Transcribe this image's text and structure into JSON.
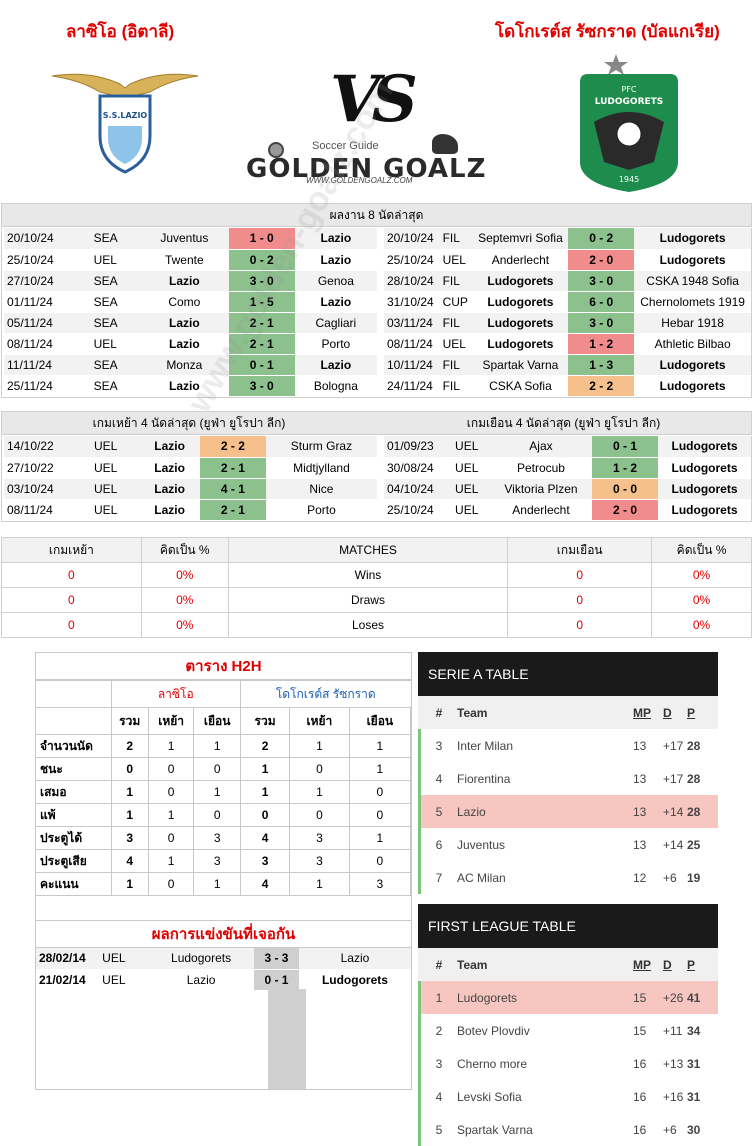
{
  "header": {
    "home_team_name": "ลาซิโอ (อิตาลี)",
    "away_team_name": "โดโกเรต์ส รัซกราด (บัลแกเรีย)",
    "vs_text": "VS",
    "brand_subtitle": "Soccer Guide",
    "brand_name": "GOLDEN GOALZ",
    "brand_url": "WWW.GOLDENGOALZ.COM",
    "home_logo_text": "S.S.LAZIO",
    "away_logo_top": "PFC",
    "away_logo_name": "LUDOGORETS",
    "away_logo_year": "1945"
  },
  "last8": {
    "title": "ผลงาน 8 นัดล่าสุด",
    "home": [
      {
        "date": "20/10/24",
        "comp": "SEA",
        "home": "Juventus",
        "score": "1 - 0",
        "away": "Lazio",
        "res": "loss",
        "bold": "away"
      },
      {
        "date": "25/10/24",
        "comp": "UEL",
        "home": "Twente",
        "score": "0 - 2",
        "away": "Lazio",
        "res": "win",
        "bold": "away"
      },
      {
        "date": "27/10/24",
        "comp": "SEA",
        "home": "Lazio",
        "score": "3 - 0",
        "away": "Genoa",
        "res": "win",
        "bold": "home"
      },
      {
        "date": "01/11/24",
        "comp": "SEA",
        "home": "Como",
        "score": "1 - 5",
        "away": "Lazio",
        "res": "win",
        "bold": "away"
      },
      {
        "date": "05/11/24",
        "comp": "SEA",
        "home": "Lazio",
        "score": "2 - 1",
        "away": "Cagliari",
        "res": "win",
        "bold": "home"
      },
      {
        "date": "08/11/24",
        "comp": "UEL",
        "home": "Lazio",
        "score": "2 - 1",
        "away": "Porto",
        "res": "win",
        "bold": "home"
      },
      {
        "date": "11/11/24",
        "comp": "SEA",
        "home": "Monza",
        "score": "0 - 1",
        "away": "Lazio",
        "res": "win",
        "bold": "away"
      },
      {
        "date": "25/11/24",
        "comp": "SEA",
        "home": "Lazio",
        "score": "3 - 0",
        "away": "Bologna",
        "res": "win",
        "bold": "home"
      }
    ],
    "away": [
      {
        "date": "20/10/24",
        "comp": "FIL",
        "home": "Septemvri Sofia",
        "score": "0 - 2",
        "away": "Ludogorets",
        "res": "win",
        "bold": "away"
      },
      {
        "date": "25/10/24",
        "comp": "UEL",
        "home": "Anderlecht",
        "score": "2 - 0",
        "away": "Ludogorets",
        "res": "loss",
        "bold": "away"
      },
      {
        "date": "28/10/24",
        "comp": "FIL",
        "home": "Ludogorets",
        "score": "3 - 0",
        "away": "CSKA 1948 Sofia",
        "res": "win",
        "bold": "home"
      },
      {
        "date": "31/10/24",
        "comp": "CUP",
        "home": "Ludogorets",
        "score": "6 - 0",
        "away": "Chernolomets 1919",
        "res": "win",
        "bold": "home"
      },
      {
        "date": "03/11/24",
        "comp": "FIL",
        "home": "Ludogorets",
        "score": "3 - 0",
        "away": "Hebar 1918",
        "res": "win",
        "bold": "home"
      },
      {
        "date": "08/11/24",
        "comp": "UEL",
        "home": "Ludogorets",
        "score": "1 - 2",
        "away": "Athletic Bilbao",
        "res": "loss",
        "bold": "home"
      },
      {
        "date": "10/11/24",
        "comp": "FIL",
        "home": "Spartak Varna",
        "score": "1 - 3",
        "away": "Ludogorets",
        "res": "win",
        "bold": "away"
      },
      {
        "date": "24/11/24",
        "comp": "FIL",
        "home": "CSKA Sofia",
        "score": "2 - 2",
        "away": "Ludogorets",
        "res": "draw",
        "bold": "away"
      }
    ]
  },
  "last4": {
    "home_title": "เกมเหย้า 4 นัดล่าสุด (ยูฟ่า ยูโรปา ลีก)",
    "away_title": "เกมเยือน 4 นัดล่าสุด (ยูฟ่า ยูโรปา ลีก)",
    "home": [
      {
        "date": "14/10/22",
        "comp": "UEL",
        "home": "Lazio",
        "score": "2 - 2",
        "away": "Sturm Graz",
        "res": "draw",
        "bold": "home"
      },
      {
        "date": "27/10/22",
        "comp": "UEL",
        "home": "Lazio",
        "score": "2 - 1",
        "away": "Midtjylland",
        "res": "win",
        "bold": "home"
      },
      {
        "date": "03/10/24",
        "comp": "UEL",
        "home": "Lazio",
        "score": "4 - 1",
        "away": "Nice",
        "res": "win",
        "bold": "home"
      },
      {
        "date": "08/11/24",
        "comp": "UEL",
        "home": "Lazio",
        "score": "2 - 1",
        "away": "Porto",
        "res": "win",
        "bold": "home"
      }
    ],
    "away": [
      {
        "date": "01/09/23",
        "comp": "UEL",
        "home": "Ajax",
        "score": "0 - 1",
        "away": "Ludogorets",
        "res": "win",
        "bold": "away"
      },
      {
        "date": "30/08/24",
        "comp": "UEL",
        "home": "Petrocub",
        "score": "1 - 2",
        "away": "Ludogorets",
        "res": "win",
        "bold": "away"
      },
      {
        "date": "04/10/24",
        "comp": "UEL",
        "home": "Viktoria Plzen",
        "score": "0 - 0",
        "away": "Ludogorets",
        "res": "draw",
        "bold": "away"
      },
      {
        "date": "25/10/24",
        "comp": "UEL",
        "home": "Anderlecht",
        "score": "2 - 0",
        "away": "Ludogorets",
        "res": "loss",
        "bold": "away"
      }
    ]
  },
  "stats": {
    "headers": [
      "เกมเหย้า",
      "คิดเป็น %",
      "MATCHES",
      "เกมเยือน",
      "คิดเป็น %"
    ],
    "rows": [
      {
        "home": "0",
        "home_pct": "0%",
        "label": "Wins",
        "away": "0",
        "away_pct": "0%"
      },
      {
        "home": "0",
        "home_pct": "0%",
        "label": "Draws",
        "away": "0",
        "away_pct": "0%"
      },
      {
        "home": "0",
        "home_pct": "0%",
        "label": "Loses",
        "away": "0",
        "away_pct": "0%"
      }
    ]
  },
  "h2h": {
    "title": "ตาราง H2H",
    "home_label": "ลาซิโอ",
    "away_label": "โดโกเรต์ส รัซกราด",
    "subheaders": [
      "รวม",
      "เหย้า",
      "เยือน",
      "รวม",
      "เหย้า",
      "เยือน"
    ],
    "rows": [
      {
        "label": "จำนวนนัด",
        "v": [
          "2",
          "1",
          "1",
          "2",
          "1",
          "1"
        ]
      },
      {
        "label": "ชนะ",
        "v": [
          "0",
          "0",
          "0",
          "1",
          "0",
          "1"
        ]
      },
      {
        "label": "เสมอ",
        "v": [
          "1",
          "0",
          "1",
          "1",
          "1",
          "0"
        ]
      },
      {
        "label": "แพ้",
        "v": [
          "1",
          "1",
          "0",
          "0",
          "0",
          "0"
        ]
      },
      {
        "label": "ประตูได้",
        "v": [
          "3",
          "0",
          "3",
          "4",
          "3",
          "1"
        ]
      },
      {
        "label": "ประตูเสีย",
        "v": [
          "4",
          "1",
          "3",
          "3",
          "3",
          "0"
        ]
      },
      {
        "label": "คะแนน",
        "v": [
          "1",
          "0",
          "1",
          "4",
          "1",
          "3"
        ]
      }
    ],
    "results_title": "ผลการแข่งขันที่เจอกัน",
    "results": [
      {
        "date": "28/02/14",
        "comp": "UEL",
        "home": "Ludogorets",
        "score": "3 - 3",
        "away": "Lazio",
        "bold": "none"
      },
      {
        "date": "21/02/14",
        "comp": "UEL",
        "home": "Lazio",
        "score": "0 - 1",
        "away": "Ludogorets",
        "bold": "away"
      }
    ]
  },
  "serie_a": {
    "title": "SERIE A TABLE",
    "cols": [
      "#",
      "Team",
      "MP",
      "D",
      "P"
    ],
    "rows": [
      {
        "pos": "3",
        "team": "Inter Milan",
        "mp": "13",
        "d": "+17",
        "p": "28",
        "hl": false
      },
      {
        "pos": "4",
        "team": "Fiorentina",
        "mp": "13",
        "d": "+17",
        "p": "28",
        "hl": false
      },
      {
        "pos": "5",
        "team": "Lazio",
        "mp": "13",
        "d": "+14",
        "p": "28",
        "hl": true
      },
      {
        "pos": "6",
        "team": "Juventus",
        "mp": "13",
        "d": "+14",
        "p": "25",
        "hl": false
      },
      {
        "pos": "7",
        "team": "AC Milan",
        "mp": "12",
        "d": "+6",
        "p": "19",
        "hl": false
      }
    ]
  },
  "first_league": {
    "title": "FIRST LEAGUE TABLE",
    "cols": [
      "#",
      "Team",
      "MP",
      "D",
      "P"
    ],
    "rows": [
      {
        "pos": "1",
        "team": "Ludogorets",
        "mp": "15",
        "d": "+26",
        "p": "41",
        "hl": true
      },
      {
        "pos": "2",
        "team": "Botev Plovdiv",
        "mp": "15",
        "d": "+11",
        "p": "34",
        "hl": false
      },
      {
        "pos": "3",
        "team": "Cherno more",
        "mp": "16",
        "d": "+13",
        "p": "31",
        "hl": false
      },
      {
        "pos": "4",
        "team": "Levski Sofia",
        "mp": "16",
        "d": "+16",
        "p": "31",
        "hl": false
      },
      {
        "pos": "5",
        "team": "Spartak Varna",
        "mp": "16",
        "d": "+6",
        "p": "30",
        "hl": false
      }
    ]
  },
  "watermark": "www.golden-goalz.com",
  "colors": {
    "win": "#8cc08c",
    "loss": "#f08c8c",
    "draw": "#f5c08c",
    "title_red": "#e00000",
    "highlight": "#f7c6c0",
    "green_bar": "#7dc47d"
  }
}
